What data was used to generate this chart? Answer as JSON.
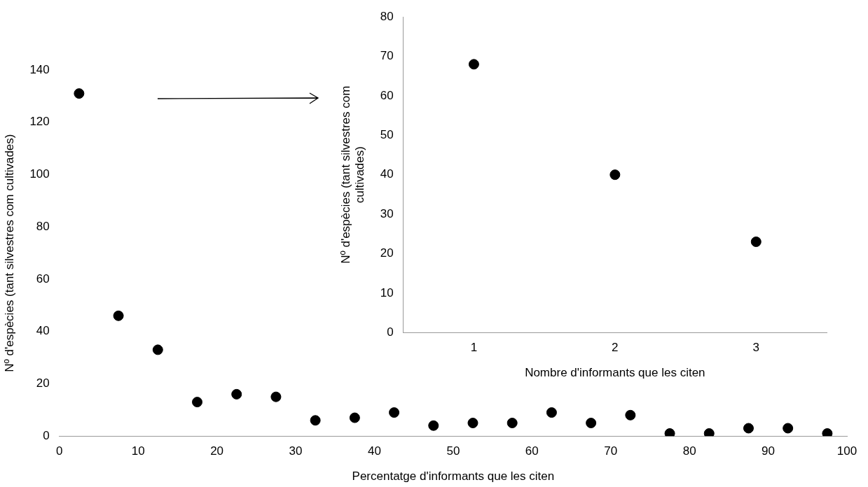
{
  "chart_data": [
    {
      "type": "scatter",
      "xlabel": "Percentatge d'informants que les citen",
      "ylabel": "Nº d'espècies (tant silvestres com cultivades)",
      "x": [
        2.5,
        7.5,
        12.5,
        17.5,
        22.5,
        27.5,
        32.5,
        37.5,
        42.5,
        47.5,
        52.5,
        57.5,
        62.5,
        67.5,
        72.5,
        77.5,
        82.5,
        87.5,
        92.5,
        97.5
      ],
      "values": [
        131,
        46,
        33,
        13,
        16,
        15,
        6,
        7,
        9,
        4,
        5,
        5,
        9,
        5,
        8,
        1,
        1,
        3,
        3,
        1
      ],
      "color": "#000000",
      "xlim": [
        0,
        100
      ],
      "xticks": [
        0,
        10,
        20,
        30,
        40,
        50,
        60,
        70,
        80,
        90,
        100
      ],
      "ylim": [
        0,
        140
      ],
      "yticks": [
        0,
        20,
        40,
        60,
        80,
        100,
        120,
        140
      ],
      "grid": false,
      "marker": "circle"
    },
    {
      "type": "scatter",
      "xlabel": "Nombre d'informants que les citen",
      "ylabel": "Nº d'espècies (tant silvestres com cultivades)",
      "categories": [
        "1",
        "2",
        "3"
      ],
      "values": [
        68,
        40,
        23
      ],
      "color": "#000000",
      "ylim": [
        0,
        80
      ],
      "yticks": [
        0,
        10,
        20,
        30,
        40,
        50,
        60,
        70,
        80
      ],
      "grid": false,
      "marker": "circle"
    }
  ]
}
